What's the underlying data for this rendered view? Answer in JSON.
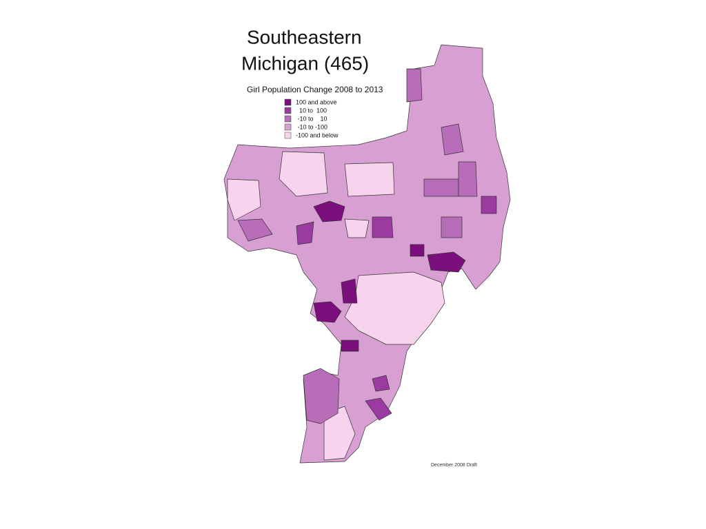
{
  "title_lines": [
    "Southeastern",
    "Michigan (465)"
  ],
  "legend": {
    "title": "Girl Population Change 2008 to 2013",
    "entries": [
      {
        "label": "100 and above",
        "color": "#7b0f7b"
      },
      {
        "label": "  10 to  100",
        "color": "#9b3aa0"
      },
      {
        "label": " -10 to    10",
        "color": "#b86db8"
      },
      {
        "label": " -10 to -100",
        "color": "#d89fd3"
      },
      {
        "label": "-100 and below",
        "color": "#f7d3ee"
      }
    ]
  },
  "footer": "December 2008 Draft"
}
